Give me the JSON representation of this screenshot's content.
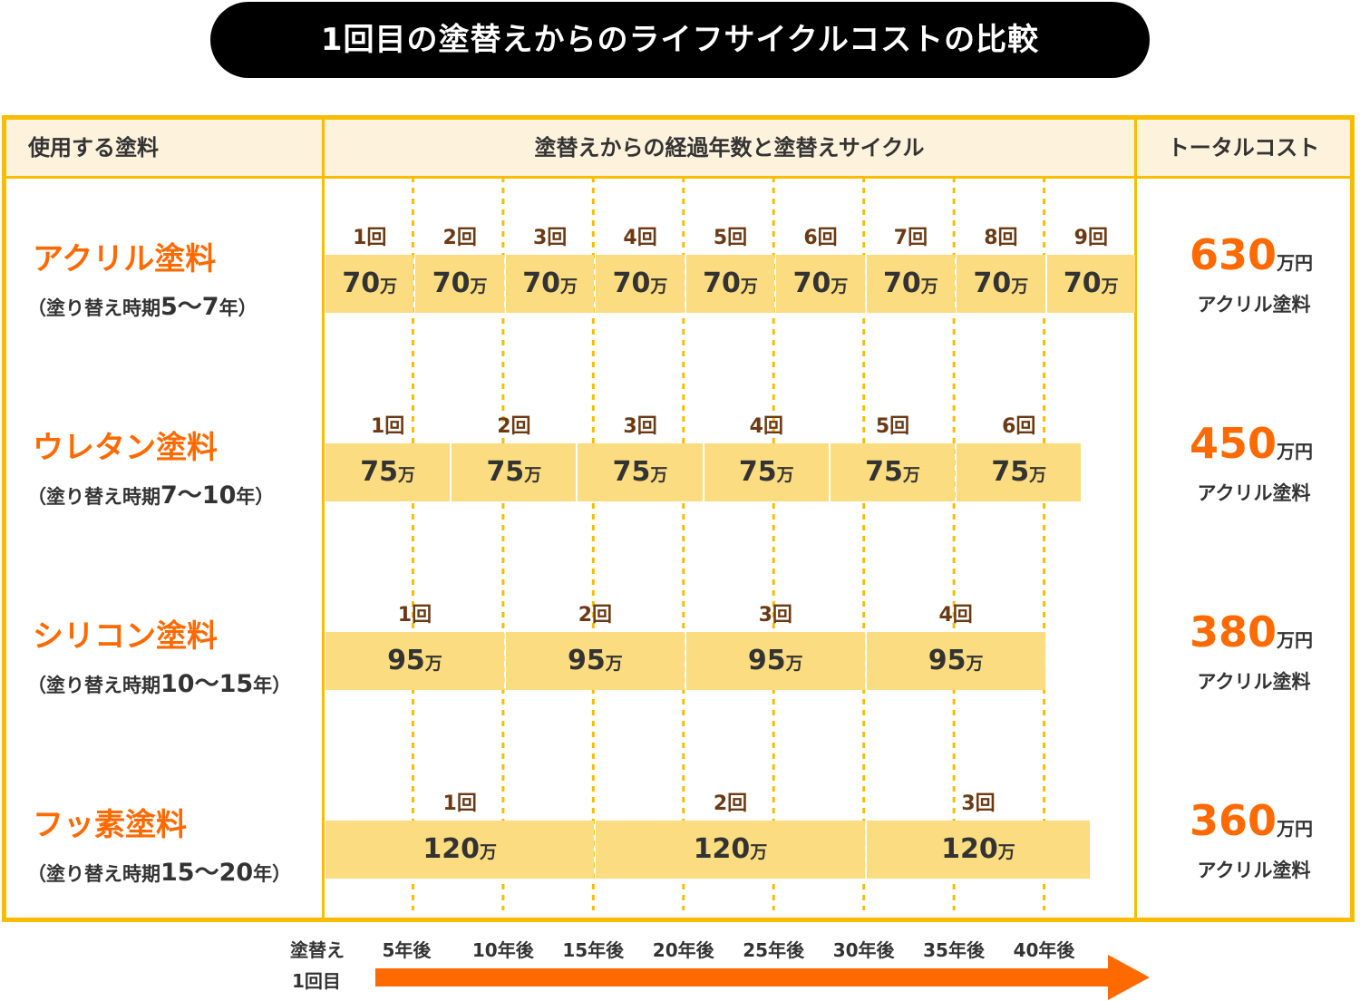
{
  "title": "1回目の塗替えからのライフサイクルコストの比較",
  "header": {
    "col_paint": "使用する塗料",
    "col_cycle": "塗替えからの経過年数と塗替えサイクル",
    "col_total": "トータルコスト"
  },
  "colors": {
    "frame": "#f8bd00",
    "header_bg": "#fdf2dc",
    "box_fill": "#fbdc80",
    "accent": "#ff6a00",
    "cycle_label": "#6b3a14"
  },
  "chart_data": {
    "type": "table",
    "title": "1回目の塗替えからのライフサイクルコストの比較",
    "x_axis": {
      "start_label_line1": "塗替え",
      "start_label_line2": "1回目",
      "ticks": [
        "5年後",
        "10年後",
        "15年後",
        "20年後",
        "25年後",
        "30年後",
        "35年後",
        "40年後"
      ],
      "tick_years": [
        5,
        10,
        15,
        20,
        25,
        30,
        35,
        40
      ],
      "range_years": [
        0,
        45
      ]
    },
    "rows": [
      {
        "name": "アクリル塗料",
        "period_open": "（塗り替え時期",
        "period_range": "5〜7",
        "period_close": "年）",
        "interval_years": 5,
        "cycles": [
          {
            "label": "1回",
            "cost": "70",
            "unit": "万"
          },
          {
            "label": "2回",
            "cost": "70",
            "unit": "万"
          },
          {
            "label": "3回",
            "cost": "70",
            "unit": "万"
          },
          {
            "label": "4回",
            "cost": "70",
            "unit": "万"
          },
          {
            "label": "5回",
            "cost": "70",
            "unit": "万"
          },
          {
            "label": "6回",
            "cost": "70",
            "unit": "万"
          },
          {
            "label": "7回",
            "cost": "70",
            "unit": "万"
          },
          {
            "label": "8回",
            "cost": "70",
            "unit": "万"
          },
          {
            "label": "9回",
            "cost": "70",
            "unit": "万"
          }
        ],
        "total": "630",
        "total_unit": "万円",
        "total_caption": "アクリル塗料"
      },
      {
        "name": "ウレタン塗料",
        "period_open": "（塗り替え時期",
        "period_range": "7〜10",
        "period_close": "年）",
        "interval_years": 7,
        "cycles": [
          {
            "label": "1回",
            "cost": "75",
            "unit": "万"
          },
          {
            "label": "2回",
            "cost": "75",
            "unit": "万"
          },
          {
            "label": "3回",
            "cost": "75",
            "unit": "万"
          },
          {
            "label": "4回",
            "cost": "75",
            "unit": "万"
          },
          {
            "label": "5回",
            "cost": "75",
            "unit": "万"
          },
          {
            "label": "6回",
            "cost": "75",
            "unit": "万"
          }
        ],
        "total": "450",
        "total_unit": "万円",
        "total_caption": "アクリル塗料"
      },
      {
        "name": "シリコン塗料",
        "period_open": "（塗り替え時期",
        "period_range": "10〜15",
        "period_close": "年）",
        "interval_years": 10,
        "cycles": [
          {
            "label": "1回",
            "cost": "95",
            "unit": "万"
          },
          {
            "label": "2回",
            "cost": "95",
            "unit": "万"
          },
          {
            "label": "3回",
            "cost": "95",
            "unit": "万"
          },
          {
            "label": "4回",
            "cost": "95",
            "unit": "万"
          }
        ],
        "total": "380",
        "total_unit": "万円",
        "total_caption": "アクリル塗料"
      },
      {
        "name": "フッ素塗料",
        "period_open": "（塗り替え時期",
        "period_range": "15〜20",
        "period_close": "年）",
        "interval_years": 15,
        "cycles": [
          {
            "label": "1回",
            "cost": "120",
            "unit": "万"
          },
          {
            "label": "2回",
            "cost": "120",
            "unit": "万"
          },
          {
            "label": "3回",
            "cost": "120",
            "unit": "万",
            "span_years": 12.5
          }
        ],
        "total": "360",
        "total_unit": "万円",
        "total_caption": "アクリル塗料"
      }
    ]
  }
}
